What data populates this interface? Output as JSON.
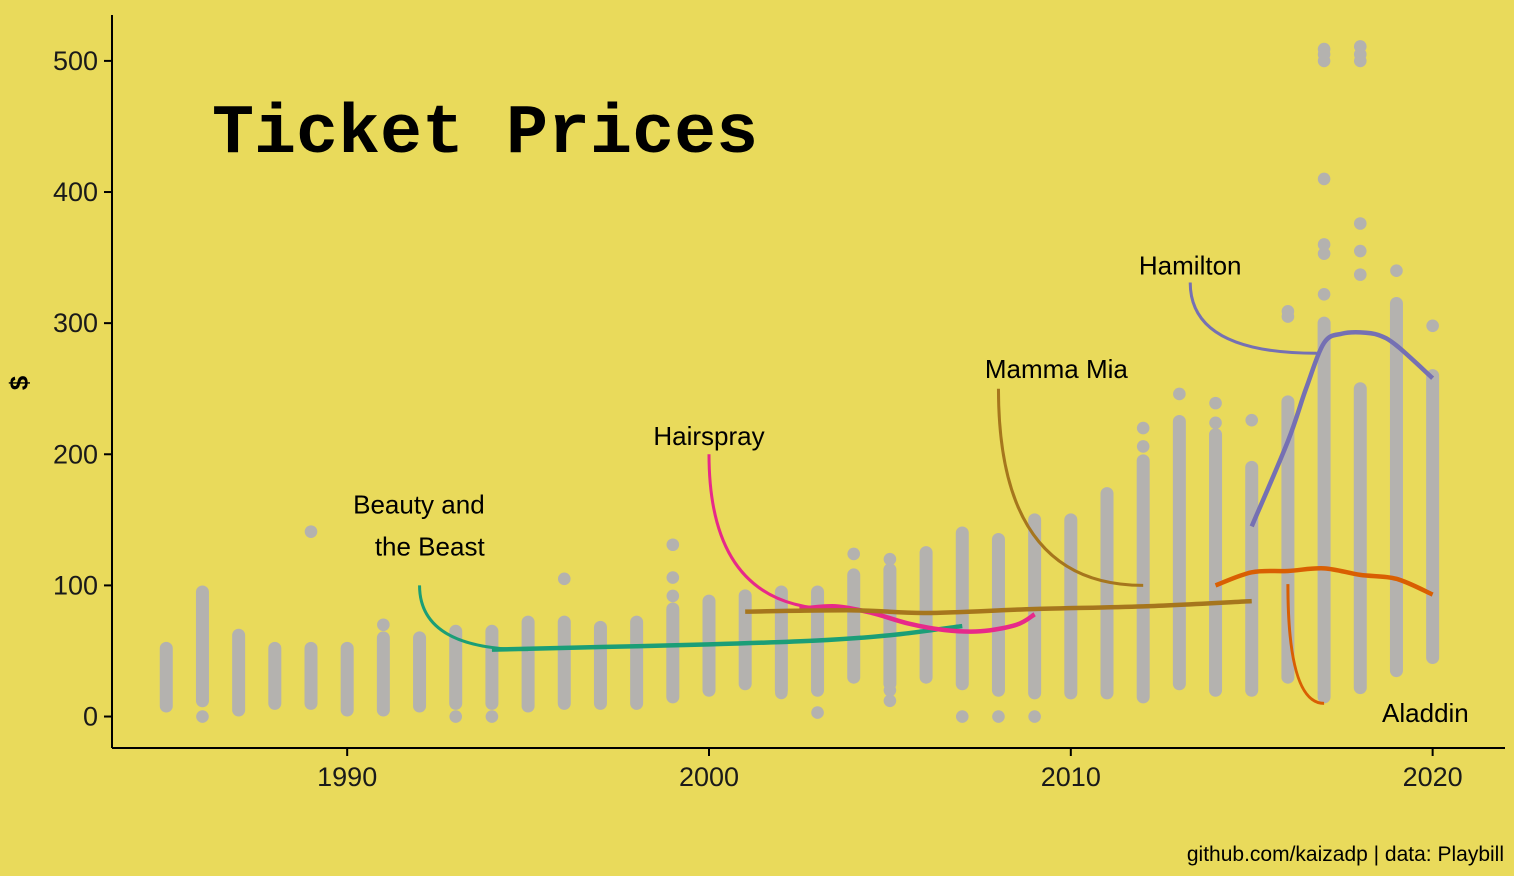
{
  "chart_data": {
    "type": "scatter",
    "title": "Ticket Prices",
    "xlabel": "",
    "ylabel": "$",
    "caption": "github.com/kaizadp | data: Playbill",
    "xlim": [
      1983.5,
      2022
    ],
    "ylim": [
      -24,
      535
    ],
    "xticks": [
      "1990",
      "2000",
      "2010",
      "2020"
    ],
    "yticks": [
      "0",
      "100",
      "200",
      "300",
      "400",
      "500"
    ],
    "grid": false,
    "legend": "none",
    "point_color": "#B4B2AF",
    "point_ranges": [
      {
        "year": 1985,
        "min": 8,
        "max": 52
      },
      {
        "year": 1986,
        "min": 12,
        "max": 95
      },
      {
        "year": 1987,
        "min": 5,
        "max": 62
      },
      {
        "year": 1988,
        "min": 10,
        "max": 52
      },
      {
        "year": 1989,
        "min": 10,
        "max": 52
      },
      {
        "year": 1990,
        "min": 5,
        "max": 52
      },
      {
        "year": 1991,
        "min": 5,
        "max": 60
      },
      {
        "year": 1992,
        "min": 8,
        "max": 60
      },
      {
        "year": 1993,
        "min": 10,
        "max": 65
      },
      {
        "year": 1994,
        "min": 10,
        "max": 65
      },
      {
        "year": 1995,
        "min": 8,
        "max": 72
      },
      {
        "year": 1996,
        "min": 10,
        "max": 72
      },
      {
        "year": 1997,
        "min": 10,
        "max": 68
      },
      {
        "year": 1998,
        "min": 10,
        "max": 72
      },
      {
        "year": 1999,
        "min": 15,
        "max": 82
      },
      {
        "year": 2000,
        "min": 20,
        "max": 88
      },
      {
        "year": 2001,
        "min": 25,
        "max": 92
      },
      {
        "year": 2002,
        "min": 20,
        "max": 95
      },
      {
        "year": 2003,
        "min": 20,
        "max": 95
      },
      {
        "year": 2004,
        "min": 30,
        "max": 108
      },
      {
        "year": 2005,
        "min": 25,
        "max": 112
      },
      {
        "year": 2006,
        "min": 30,
        "max": 125
      },
      {
        "year": 2007,
        "min": 25,
        "max": 140
      },
      {
        "year": 2008,
        "min": 20,
        "max": 135
      },
      {
        "year": 2009,
        "min": 18,
        "max": 150
      },
      {
        "year": 2010,
        "min": 18,
        "max": 150
      },
      {
        "year": 2011,
        "min": 18,
        "max": 170
      },
      {
        "year": 2012,
        "min": 15,
        "max": 195
      },
      {
        "year": 2013,
        "min": 25,
        "max": 225
      },
      {
        "year": 2014,
        "min": 20,
        "max": 215
      },
      {
        "year": 2015,
        "min": 20,
        "max": 190
      },
      {
        "year": 2016,
        "min": 30,
        "max": 240
      },
      {
        "year": 2017,
        "min": 15,
        "max": 300
      },
      {
        "year": 2018,
        "min": 22,
        "max": 250
      },
      {
        "year": 2019,
        "min": 35,
        "max": 315
      },
      {
        "year": 2020,
        "min": 45,
        "max": 260
      }
    ],
    "outliers": [
      {
        "x": 1986,
        "y": 0
      },
      {
        "x": 1986,
        "y": 90
      },
      {
        "x": 1989,
        "y": 141
      },
      {
        "x": 1991,
        "y": 70
      },
      {
        "x": 1993,
        "y": 0
      },
      {
        "x": 1994,
        "y": 0
      },
      {
        "x": 1996,
        "y": 105
      },
      {
        "x": 1999,
        "y": 92
      },
      {
        "x": 1999,
        "y": 106
      },
      {
        "x": 1999,
        "y": 131
      },
      {
        "x": 2002,
        "y": 18
      },
      {
        "x": 2003,
        "y": 3
      },
      {
        "x": 2004,
        "y": 124
      },
      {
        "x": 2005,
        "y": 12
      },
      {
        "x": 2005,
        "y": 20
      },
      {
        "x": 2005,
        "y": 120
      },
      {
        "x": 2007,
        "y": 0
      },
      {
        "x": 2008,
        "y": 0
      },
      {
        "x": 2009,
        "y": 0
      },
      {
        "x": 2012,
        "y": 206
      },
      {
        "x": 2012,
        "y": 220
      },
      {
        "x": 2013,
        "y": 246
      },
      {
        "x": 2014,
        "y": 224
      },
      {
        "x": 2014,
        "y": 239
      },
      {
        "x": 2015,
        "y": 226
      },
      {
        "x": 2016,
        "y": 305
      },
      {
        "x": 2016,
        "y": 309
      },
      {
        "x": 2017,
        "y": 322
      },
      {
        "x": 2017,
        "y": 353
      },
      {
        "x": 2017,
        "y": 360
      },
      {
        "x": 2017,
        "y": 410
      },
      {
        "x": 2017,
        "y": 500
      },
      {
        "x": 2017,
        "y": 505
      },
      {
        "x": 2017,
        "y": 509
      },
      {
        "x": 2018,
        "y": 337
      },
      {
        "x": 2018,
        "y": 355
      },
      {
        "x": 2018,
        "y": 376
      },
      {
        "x": 2018,
        "y": 500
      },
      {
        "x": 2018,
        "y": 505
      },
      {
        "x": 2018,
        "y": 511
      },
      {
        "x": 2019,
        "y": 340
      },
      {
        "x": 2020,
        "y": 298
      }
    ],
    "series": [
      {
        "name": "Beauty and the Beast",
        "color": "#1B9E77",
        "x": [
          1994,
          1997,
          2000,
          2003,
          2005,
          2007
        ],
        "y": [
          51,
          53,
          55,
          58,
          62,
          69
        ]
      },
      {
        "name": "Hairspray",
        "color": "#E7298A",
        "x": [
          2002.5,
          2003.5,
          2004.5,
          2005.5,
          2006.5,
          2007.5,
          2008.5,
          2009
        ],
        "y": [
          82,
          84,
          79,
          71,
          66,
          65,
          70,
          78
        ]
      },
      {
        "name": "Mamma Mia",
        "color": "#A6761D",
        "x": [
          2001,
          2004,
          2006,
          2009,
          2012,
          2015
        ],
        "y": [
          80,
          81,
          79,
          82,
          84,
          88
        ]
      },
      {
        "name": "Hamilton",
        "color": "#7570B3",
        "x": [
          2015,
          2016,
          2016.5,
          2017,
          2017.5,
          2018,
          2018.5,
          2019,
          2020
        ],
        "y": [
          145,
          210,
          250,
          285,
          292,
          293,
          291,
          283,
          258
        ]
      },
      {
        "name": "Aladdin",
        "color": "#D95F02",
        "x": [
          2014,
          2015,
          2016,
          2017,
          2018,
          2019,
          2020
        ],
        "y": [
          100,
          110,
          111,
          113,
          108,
          105,
          93
        ]
      }
    ],
    "annotations": [
      {
        "series": "Hamilton",
        "lines": [
          "Hamilton"
        ],
        "x": 2013.3,
        "y": 337,
        "anchor": "middle",
        "leader": [
          [
            2013.3,
            331
          ],
          [
            2016.8,
            277
          ]
        ]
      },
      {
        "series": "Mamma Mia",
        "lines": [
          "Mamma Mia"
        ],
        "x": 2009.6,
        "y": 258,
        "anchor": "middle",
        "leader": [
          [
            2008,
            250
          ],
          [
            2012,
            100
          ]
        ]
      },
      {
        "series": "Hairspray",
        "lines": [
          "Hairspray"
        ],
        "x": 2000,
        "y": 207,
        "anchor": "middle",
        "leader": [
          [
            2000,
            200
          ],
          [
            2003.5,
            82
          ]
        ]
      },
      {
        "series": "Beauty and the Beast",
        "lines": [
          "Beauty and",
          "the Beast"
        ],
        "x": 1993.8,
        "y": 155,
        "anchor": "end",
        "leader": [
          [
            1992,
            100
          ],
          [
            1995,
            51
          ]
        ]
      },
      {
        "series": "Aladdin",
        "lines": [
          "Aladdin"
        ],
        "x": 2019.8,
        "y": -4,
        "anchor": "middle",
        "leader": [
          [
            2016,
            101
          ],
          [
            2017,
            10
          ]
        ]
      }
    ]
  }
}
